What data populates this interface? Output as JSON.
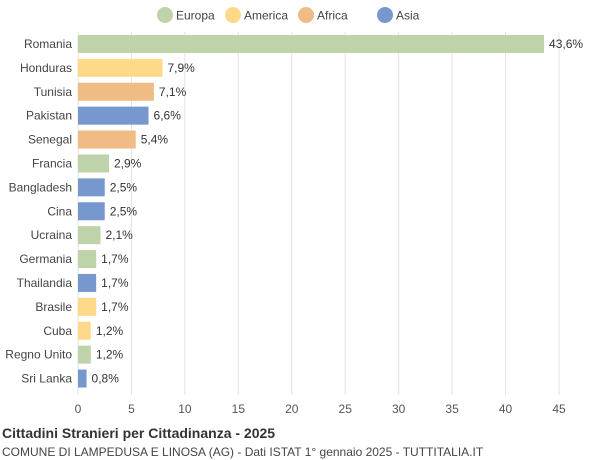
{
  "chart_data": {
    "type": "bar",
    "orientation": "horizontal",
    "title": "Cittadini Stranieri per Cittadinanza - 2025",
    "subtitle": "COMUNE DI LAMPEDUSA E LINOSA (AG) - Dati ISTAT 1° gennaio 2025 - TUTTITALIA.IT",
    "legend": [
      {
        "name": "Europa",
        "color": "#bfd3aa"
      },
      {
        "name": "America",
        "color": "#ffd98a"
      },
      {
        "name": "Africa",
        "color": "#f0bb85"
      },
      {
        "name": "Asia",
        "color": "#7698cf"
      }
    ],
    "legend_position": "top",
    "categories": [
      "Romania",
      "Honduras",
      "Tunisia",
      "Pakistan",
      "Senegal",
      "Francia",
      "Bangladesh",
      "Cina",
      "Ucraina",
      "Germania",
      "Thailandia",
      "Brasile",
      "Cuba",
      "Regno Unito",
      "Sri Lanka"
    ],
    "values": [
      43.6,
      7.9,
      7.1,
      6.6,
      5.4,
      2.9,
      2.5,
      2.5,
      2.1,
      1.7,
      1.7,
      1.7,
      1.2,
      1.2,
      0.8
    ],
    "value_labels": [
      "43,6%",
      "7,9%",
      "7,1%",
      "6,6%",
      "5,4%",
      "2,9%",
      "2,5%",
      "2,5%",
      "2,1%",
      "1,7%",
      "1,7%",
      "1,7%",
      "1,2%",
      "1,2%",
      "0,8%"
    ],
    "groups": [
      "Europa",
      "America",
      "Africa",
      "Asia",
      "Africa",
      "Europa",
      "Asia",
      "Asia",
      "Europa",
      "Europa",
      "Asia",
      "America",
      "America",
      "Europa",
      "Asia"
    ],
    "xlim": [
      0,
      45
    ],
    "xticks": [
      0,
      5,
      10,
      15,
      20,
      25,
      30,
      35,
      40,
      45
    ],
    "grid": true
  }
}
